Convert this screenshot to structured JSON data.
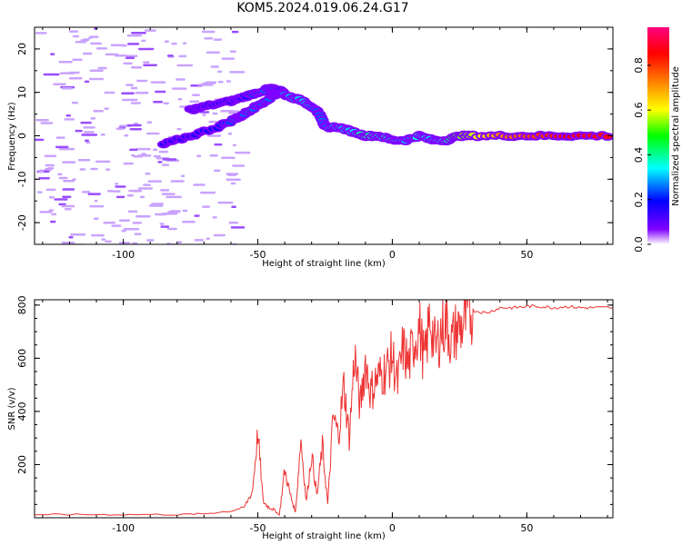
{
  "title": "KOM5.2024.019.06.24.G17",
  "chart_data": [
    {
      "type": "heatmap",
      "xlabel": "Height of straight line (km)",
      "ylabel": "Frequency (Hz)",
      "xlim": [
        -133,
        82
      ],
      "ylim": [
        -25,
        25
      ],
      "xticks": [
        -100,
        -50,
        0,
        50
      ],
      "yticks": [
        -20,
        -10,
        0,
        10,
        20
      ],
      "colorbar": {
        "label": "Normalized spectral amplitude",
        "range": [
          0,
          0.97
        ],
        "ticks": [
          "0.0",
          "0.2",
          "0.4",
          "0.6",
          "0.8"
        ],
        "colors": [
          "#ffffff",
          "#7f00ff",
          "#0000ff",
          "#00ffff",
          "#00ff00",
          "#ffff00",
          "#ff8000",
          "#ff0000",
          "#ff0080"
        ]
      },
      "ridge": {
        "x": [
          -85,
          -75,
          -65,
          -58,
          -55,
          -50,
          -45,
          -42,
          -38,
          -33,
          -28,
          -25,
          -20,
          -15,
          -10,
          -5,
          0,
          5,
          10,
          15,
          20,
          25,
          30,
          40,
          50,
          60,
          70,
          82
        ],
        "y": [
          -2,
          0,
          2,
          4,
          5,
          7,
          9,
          10,
          9,
          8,
          6,
          2,
          2,
          1,
          0,
          0,
          -1,
          -1,
          0,
          -1,
          -1,
          0,
          0,
          0,
          0,
          0,
          0,
          0
        ],
        "amplitude": [
          0.2,
          0.2,
          0.25,
          0.3,
          0.3,
          0.3,
          0.3,
          0.3,
          0.35,
          0.35,
          0.3,
          0.3,
          0.35,
          0.35,
          0.45,
          0.4,
          0.4,
          0.35,
          0.4,
          0.35,
          0.4,
          0.55,
          0.6,
          0.75,
          0.8,
          0.85,
          0.9,
          0.9
        ]
      },
      "secondary_ridge": {
        "x": [
          -75,
          -68,
          -60,
          -55,
          -50,
          -45,
          -40
        ],
        "y": [
          6,
          7,
          8,
          9,
          10,
          11,
          10
        ],
        "amplitude": [
          0.15,
          0.2,
          0.2,
          0.25,
          0.3,
          0.3,
          0.25
        ]
      }
    },
    {
      "type": "line",
      "xlabel": "Height of straight line (km)",
      "ylabel": "SNR (v/v)",
      "xlim": [
        -133,
        82
      ],
      "ylim": [
        0,
        820
      ],
      "xticks": [
        -100,
        -50,
        0,
        50
      ],
      "yticks": [
        200,
        400,
        600,
        800
      ],
      "color": "#ee3333",
      "series": [
        {
          "x": [
            -133,
            -120,
            -100,
            -80,
            -70,
            -60,
            -55,
            -52,
            -50,
            -48,
            -46,
            -44,
            -42,
            -40,
            -38,
            -36,
            -34,
            -32,
            -30,
            -28,
            -26,
            -24,
            -22,
            -20,
            -18,
            -16,
            -14,
            -12,
            -10,
            -8,
            -6,
            -4,
            -2,
            0,
            2,
            4,
            6,
            8,
            10,
            12,
            14,
            16,
            18,
            20,
            22,
            24,
            26,
            28,
            30,
            35,
            40,
            45,
            50,
            55,
            60,
            65,
            70,
            75,
            82
          ],
          "y": [
            12,
            12,
            12,
            12,
            15,
            25,
            40,
            100,
            320,
            60,
            40,
            30,
            10,
            180,
            90,
            20,
            300,
            60,
            240,
            80,
            270,
            50,
            380,
            310,
            500,
            300,
            620,
            410,
            590,
            470,
            520,
            540,
            560,
            610,
            500,
            640,
            570,
            660,
            720,
            580,
            760,
            630,
            700,
            740,
            660,
            710,
            720,
            760,
            780,
            770,
            790,
            790,
            795,
            795,
            790,
            795,
            790,
            790,
            790
          ]
        }
      ]
    }
  ]
}
